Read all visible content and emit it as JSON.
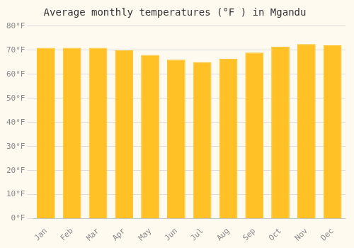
{
  "chart_data": {
    "type": "bar",
    "title": "Average monthly temperatures (°F ) in Mgandu",
    "categories": [
      "Jan",
      "Feb",
      "Mar",
      "Apr",
      "May",
      "Jun",
      "Jul",
      "Aug",
      "Sep",
      "Oct",
      "Nov",
      "Dec"
    ],
    "values": [
      71,
      71,
      71,
      70,
      68,
      66,
      65,
      66.5,
      69,
      71.5,
      72.5,
      72
    ],
    "color": "#FFC125",
    "ylim": [
      0,
      80
    ],
    "yticks": [
      {
        "value": 0,
        "label": "0°F"
      },
      {
        "value": 10,
        "label": "10°F"
      },
      {
        "value": 20,
        "label": "20°F"
      },
      {
        "value": 30,
        "label": "30°F"
      },
      {
        "value": 40,
        "label": "40°F"
      },
      {
        "value": 50,
        "label": "50°F"
      },
      {
        "value": 60,
        "label": "60°F"
      },
      {
        "value": 70,
        "label": "70°F"
      },
      {
        "value": 80,
        "label": "80°F"
      }
    ],
    "grid": true
  }
}
